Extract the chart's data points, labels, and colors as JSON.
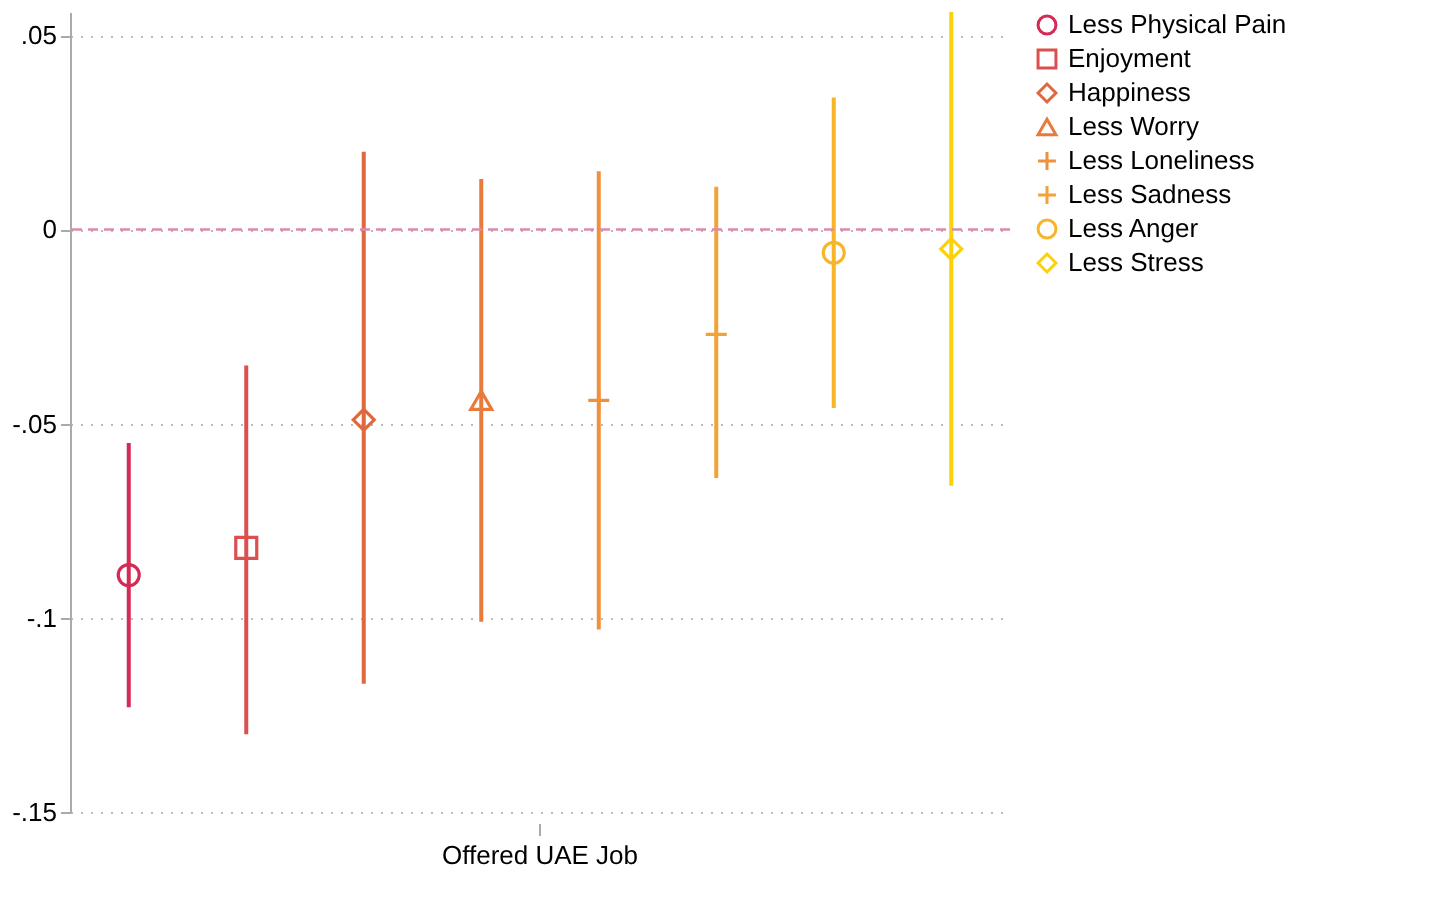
{
  "chart_data": {
    "type": "scatter",
    "categories": [
      null,
      null,
      null,
      null,
      null,
      null,
      null,
      null
    ],
    "annotations": [
      "Offered UAE Job"
    ],
    "ylim": [
      -0.15,
      0.056
    ],
    "yticks": [
      {
        "value": -0.15,
        "label": "-.15"
      },
      {
        "value": -0.1,
        "label": "-.1"
      },
      {
        "value": -0.05,
        "label": "-.05"
      },
      {
        "value": 0,
        "label": "0"
      },
      {
        "value": 0.05,
        "label": ".05"
      }
    ],
    "grid": "y",
    "legend": "right",
    "ref_lines": [
      {
        "axis": "y",
        "value": 0,
        "color": "#d98cb0",
        "line_style": "dashed"
      }
    ],
    "series": [
      {
        "name": "Less Physical Pain",
        "color": "#d42a55",
        "marker": "circle",
        "values": [
          -0.089,
          null,
          null,
          null,
          null,
          null,
          null,
          null
        ],
        "errors": [
          [
            -0.123,
            -0.055
          ],
          null,
          null,
          null,
          null,
          null,
          null,
          null
        ]
      },
      {
        "name": "Enjoyment",
        "color": "#db4f4f",
        "marker": "square",
        "values": [
          null,
          -0.082,
          null,
          null,
          null,
          null,
          null,
          null
        ],
        "errors": [
          null,
          [
            -0.13,
            -0.035
          ],
          null,
          null,
          null,
          null,
          null,
          null
        ]
      },
      {
        "name": "Happiness",
        "color": "#e0683f",
        "marker": "diamond",
        "values": [
          null,
          null,
          -0.049,
          null,
          null,
          null,
          null,
          null
        ],
        "errors": [
          null,
          null,
          [
            -0.117,
            0.02
          ],
          null,
          null,
          null,
          null,
          null
        ]
      },
      {
        "name": "Less Worry",
        "color": "#e87b3c",
        "marker": "triangle",
        "values": [
          null,
          null,
          null,
          -0.044,
          null,
          null,
          null,
          null
        ],
        "errors": [
          null,
          null,
          null,
          [
            -0.101,
            0.013
          ],
          null,
          null,
          null,
          null
        ]
      },
      {
        "name": "Less Loneliness",
        "color": "#ef913c",
        "marker": "cross",
        "values": [
          null,
          null,
          null,
          null,
          -0.044,
          null,
          null,
          null
        ],
        "errors": [
          null,
          null,
          null,
          null,
          [
            -0.103,
            0.015
          ],
          null,
          null,
          null
        ]
      },
      {
        "name": "Less Sadness",
        "color": "#f3a23a",
        "marker": "cross",
        "values": [
          null,
          null,
          null,
          null,
          null,
          -0.027,
          null,
          null
        ],
        "errors": [
          null,
          null,
          null,
          null,
          null,
          [
            -0.064,
            0.011
          ],
          null,
          null
        ]
      },
      {
        "name": "Less Anger",
        "color": "#f7b52a",
        "marker": "circle",
        "values": [
          null,
          null,
          null,
          null,
          null,
          null,
          -0.006,
          null
        ],
        "errors": [
          null,
          null,
          null,
          null,
          null,
          null,
          [
            -0.046,
            0.034
          ],
          null
        ]
      },
      {
        "name": "Less Stress",
        "color": "#fdd00c",
        "marker": "diamond",
        "values": [
          null,
          null,
          null,
          null,
          null,
          null,
          null,
          -0.005
        ],
        "errors": [
          null,
          null,
          null,
          null,
          null,
          null,
          null,
          [
            -0.066,
            0.056
          ]
        ]
      }
    ]
  }
}
